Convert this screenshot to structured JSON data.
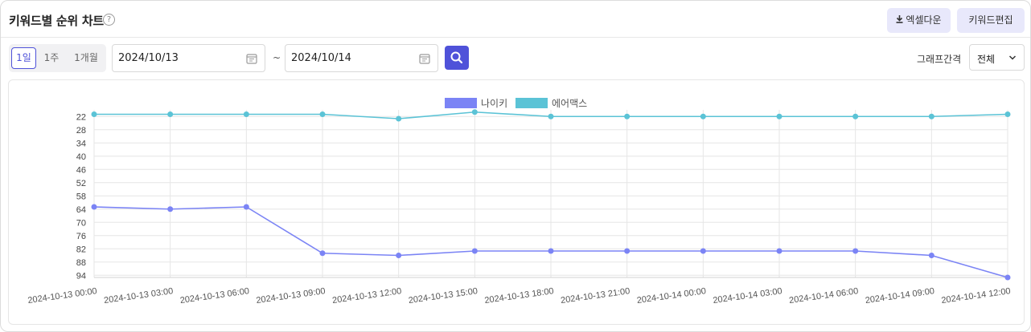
{
  "header": {
    "title": "키워드별 순위 차트",
    "help_icon": "question-circle-icon",
    "excel_label": "엑셀다운",
    "excel_icon": "download-icon",
    "edit_label": "키워드편집",
    "button_bg": "#e8e8fb"
  },
  "toolbar": {
    "periods": [
      "1일",
      "1주",
      "1개월"
    ],
    "active_period": "1일",
    "date_from": "2024/10/13",
    "date_to": "2024/10/14",
    "separator": "~",
    "calendar_icon": "calendar-icon",
    "search_icon": "search-icon",
    "interval_label": "그래프간격",
    "interval_value": "전체",
    "accent": "#4f52d9"
  },
  "chart_data": {
    "type": "line",
    "title": "",
    "xlabel": "",
    "ylabel": "",
    "y_inverted": true,
    "ylim": [
      19,
      95
    ],
    "yticks": [
      22,
      28,
      34,
      40,
      46,
      52,
      58,
      64,
      70,
      76,
      82,
      88,
      94
    ],
    "grid": true,
    "legend_position": "top-center",
    "categories": [
      "2024-10-13 00:00",
      "2024-10-13 03:00",
      "2024-10-13 06:00",
      "2024-10-13 09:00",
      "2024-10-13 12:00",
      "2024-10-13 15:00",
      "2024-10-13 18:00",
      "2024-10-13 21:00",
      "2024-10-14 00:00",
      "2024-10-14 03:00",
      "2024-10-14 06:00",
      "2024-10-14 09:00",
      "2024-10-14 12:00"
    ],
    "series": [
      {
        "name": "나이키",
        "color": "#7b84f5",
        "values": [
          63,
          64,
          63,
          84,
          85,
          83,
          83,
          83,
          83,
          83,
          83,
          85,
          95
        ]
      },
      {
        "name": "에어맥스",
        "color": "#5bc3d6",
        "values": [
          21,
          21,
          21,
          21,
          23,
          20,
          22,
          22,
          22,
          22,
          22,
          22,
          21
        ]
      }
    ]
  }
}
